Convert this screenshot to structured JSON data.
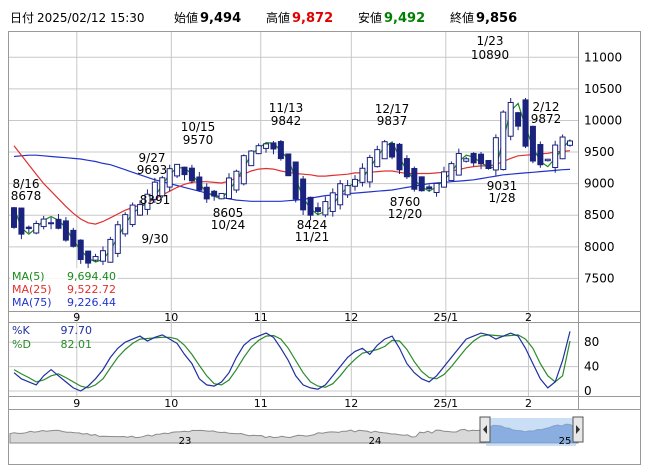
{
  "header": {
    "date_label": "日付",
    "datetime": "2025/02/12 15:30",
    "open_label": "始値",
    "open_value": "9,494",
    "high_label": "高値",
    "high_value": "9,872",
    "low_label": "安値",
    "low_value": "9,492",
    "close_label": "終値",
    "close_value": "9,856"
  },
  "colors": {
    "high": "#e00000",
    "low": "#008000",
    "candle": "#1a237e",
    "ma5": "#1a8a1a",
    "ma25": "#e03030",
    "ma75": "#2233cc",
    "k": "#1e2fa0",
    "d": "#2a8a2a",
    "grid": "#c8c8c8"
  },
  "legend": {
    "ma5_label": "MA(5)",
    "ma5_value": "9,694.40",
    "ma25_label": "MA(25)",
    "ma25_value": "9,522.72",
    "ma75_label": "MA(75)",
    "ma75_value": "9,226.44",
    "k_label": "%K",
    "k_value": "97.70",
    "d_label": "%D",
    "d_value": "82.01"
  },
  "price_annotations": [
    {
      "label": "8/16",
      "value": "8678"
    },
    {
      "label": "9/27",
      "value": "9693"
    },
    {
      "label": "8391",
      "value": "9/30"
    },
    {
      "label": "10/15",
      "value": "9570"
    },
    {
      "label": "8605",
      "value": "10/24"
    },
    {
      "label": "11/13",
      "value": "9842"
    },
    {
      "label": "8424",
      "value": "11/21"
    },
    {
      "label": "12/17",
      "value": "9837"
    },
    {
      "label": "8760",
      "value": "12/20"
    },
    {
      "label": "1/23",
      "value": "10890"
    },
    {
      "label": "9031",
      "value": "1/28"
    },
    {
      "label": "2/12",
      "value": "9872"
    }
  ],
  "chart_data": [
    {
      "type": "candlestick",
      "y_ticks": [
        "11000",
        "10500",
        "10000",
        "9500",
        "9000",
        "8500",
        "8000",
        "7500"
      ],
      "ylim": [
        7000,
        11400
      ],
      "x_ticks": [
        "9",
        "10",
        "11",
        "12",
        "25/1",
        "2"
      ],
      "series": [
        {
          "name": "MA(5)",
          "values": [
            8620,
            8300,
            8200,
            8300,
            8420,
            8480,
            8420,
            8300,
            8100,
            7950,
            7820,
            7760,
            7800,
            7950,
            8150,
            8360,
            8530,
            8620,
            8700,
            8800,
            8980,
            9150,
            9250,
            9250,
            9150,
            9000,
            8860,
            8800,
            8760,
            8900,
            9050,
            9250,
            9460,
            9560,
            9650,
            9640,
            9520,
            9380,
            9080,
            8780,
            8600,
            8510,
            8560,
            8660,
            8830,
            8940,
            9020,
            9080,
            9250,
            9430,
            9580,
            9660,
            9420,
            9200,
            9060,
            8950,
            8880,
            8950,
            9060,
            9180,
            9350,
            9450,
            9420,
            9330,
            9260,
            9250,
            9700,
            10150,
            10270,
            9900,
            9580,
            9350,
            9270,
            9400,
            9560,
            9694
          ]
        },
        {
          "name": "MA(25)",
          "values": [
            9600,
            9450,
            9300,
            9150,
            9000,
            8880,
            8760,
            8640,
            8530,
            8440,
            8380,
            8360,
            8400,
            8460,
            8520,
            8580,
            8620,
            8660,
            8700,
            8760,
            8820,
            8880,
            8940,
            8990,
            9020,
            9030,
            9030,
            9020,
            9010,
            9040,
            9090,
            9150,
            9200,
            9230,
            9240,
            9230,
            9200,
            9180,
            9160,
            9150,
            9140,
            9120,
            9120,
            9130,
            9140,
            9150,
            9170,
            9170,
            9180,
            9190,
            9200,
            9200,
            9180,
            9160,
            9160,
            9160,
            9160,
            9170,
            9180,
            9200,
            9220,
            9250,
            9270,
            9280,
            9280,
            9300,
            9350,
            9400,
            9440,
            9450,
            9460,
            9470,
            9480,
            9500,
            9510,
            9522
          ]
        },
        {
          "name": "MA(75)",
          "values": [
            9430,
            9440,
            9450,
            9450,
            9440,
            9430,
            9420,
            9410,
            9400,
            9390,
            9370,
            9350,
            9320,
            9300,
            9260,
            9220,
            9180,
            9140,
            9100,
            9060,
            9030,
            9000,
            8970,
            8940,
            8910,
            8880,
            8850,
            8820,
            8780,
            8760,
            8740,
            8730,
            8720,
            8720,
            8720,
            8720,
            8720,
            8730,
            8740,
            8750,
            8770,
            8790,
            8810,
            8820,
            8830,
            8840,
            8850,
            8860,
            8870,
            8880,
            8890,
            8900,
            8920,
            8940,
            8960,
            8980,
            9000,
            9010,
            9020,
            9030,
            9040,
            9050,
            9060,
            9080,
            9100,
            9120,
            9140,
            9150,
            9160,
            9170,
            9180,
            9190,
            9200,
            9210,
            9220,
            9226
          ]
        }
      ]
    },
    {
      "type": "line",
      "y_ticks": [
        "80",
        "40",
        "0"
      ],
      "ylim": [
        0,
        100
      ],
      "x_ticks": [
        "9",
        "10",
        "11",
        "12",
        "25/1",
        "2"
      ],
      "series": [
        {
          "name": "%K",
          "values": [
            30,
            20,
            15,
            10,
            25,
            35,
            25,
            15,
            5,
            0,
            8,
            20,
            35,
            55,
            70,
            80,
            85,
            90,
            82,
            88,
            92,
            85,
            78,
            60,
            45,
            20,
            10,
            8,
            15,
            30,
            55,
            75,
            85,
            90,
            95,
            88,
            70,
            50,
            25,
            10,
            5,
            3,
            10,
            25,
            40,
            55,
            65,
            70,
            60,
            75,
            85,
            90,
            70,
            45,
            30,
            20,
            15,
            25,
            40,
            55,
            70,
            85,
            90,
            95,
            92,
            85,
            90,
            95,
            90,
            70,
            45,
            20,
            5,
            15,
            50,
            97.7
          ]
        },
        {
          "name": "%D",
          "values": [
            35,
            28,
            22,
            15,
            18,
            25,
            28,
            22,
            15,
            8,
            5,
            10,
            20,
            38,
            55,
            68,
            78,
            85,
            86,
            87,
            88,
            88,
            85,
            75,
            60,
            42,
            25,
            12,
            10,
            18,
            35,
            55,
            72,
            83,
            90,
            91,
            85,
            70,
            50,
            30,
            15,
            8,
            6,
            12,
            25,
            40,
            52,
            62,
            65,
            68,
            73,
            83,
            82,
            68,
            48,
            32,
            22,
            20,
            27,
            40,
            55,
            70,
            82,
            90,
            92,
            91,
            90,
            91,
            92,
            85,
            70,
            45,
            25,
            15,
            25,
            82.01
          ]
        }
      ]
    },
    {
      "type": "area",
      "x_ticks": [
        "23",
        "24",
        "25"
      ]
    }
  ]
}
